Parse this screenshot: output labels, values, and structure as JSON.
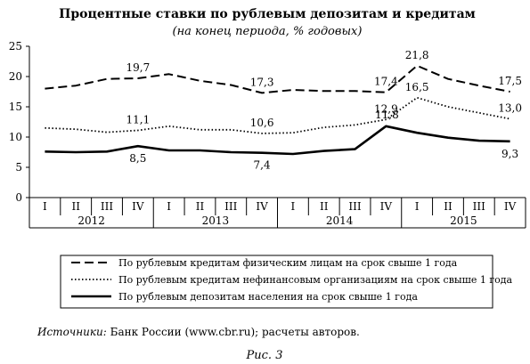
{
  "chart_data": {
    "type": "line",
    "title": "Процентные ставки по рублевым депозитам и кредитам",
    "subtitle": "(на конец периода, % годовых)",
    "ylim": [
      0,
      25
    ],
    "yticks": [
      "0",
      "5",
      "10",
      "15",
      "20",
      "25"
    ],
    "quarters": [
      "I",
      "II",
      "III",
      "IV",
      "I",
      "II",
      "III",
      "IV",
      "I",
      "II",
      "III",
      "IV",
      "I",
      "II",
      "III",
      "IV"
    ],
    "years": [
      "2012",
      "2013",
      "2014",
      "2015"
    ],
    "grid": false,
    "legend_position": "bottom",
    "series": [
      {
        "name": "По рублевым кредитам физическим лицам на срок свыше 1 года",
        "style": "dashed",
        "values": [
          18.0,
          18.5,
          19.6,
          19.7,
          20.4,
          19.3,
          18.6,
          17.3,
          17.8,
          17.6,
          17.6,
          17.4,
          21.8,
          19.6,
          18.5,
          17.5
        ],
        "labels": [
          {
            "index": 3,
            "text": "19,7"
          },
          {
            "index": 7,
            "text": "17,3"
          },
          {
            "index": 11,
            "text": "17,4"
          },
          {
            "index": 12,
            "text": "21,8"
          },
          {
            "index": 15,
            "text": "17,5"
          }
        ]
      },
      {
        "name": "По рублевым кредитам нефинансовым организациям на срок свыше 1 года",
        "style": "dotted",
        "values": [
          11.5,
          11.3,
          10.8,
          11.1,
          11.8,
          11.2,
          11.2,
          10.6,
          10.7,
          11.6,
          12.0,
          12.9,
          16.5,
          15.0,
          14.0,
          13.0
        ],
        "labels": [
          {
            "index": 3,
            "text": "11,1"
          },
          {
            "index": 7,
            "text": "10,6"
          },
          {
            "index": 11,
            "text": "12,9"
          },
          {
            "index": 12,
            "text": "16,5"
          },
          {
            "index": 15,
            "text": "13,0"
          }
        ]
      },
      {
        "name": "По рублевым депозитам населения на срок свыше 1 года",
        "style": "solid",
        "values": [
          7.6,
          7.5,
          7.6,
          8.5,
          7.8,
          7.8,
          7.5,
          7.4,
          7.2,
          7.7,
          8.0,
          11.8,
          10.7,
          9.9,
          9.4,
          9.3
        ],
        "labels": [
          {
            "index": 3,
            "text": "8,5"
          },
          {
            "index": 7,
            "text": "7,4"
          },
          {
            "index": 11,
            "text": "11,8"
          },
          {
            "index": 15,
            "text": "9,3"
          }
        ]
      }
    ]
  },
  "source_note": {
    "prefix": "Источники:",
    "text": " Банк России (www.cbr.ru); расчеты авторов."
  },
  "figure_caption": "Рис. 3"
}
